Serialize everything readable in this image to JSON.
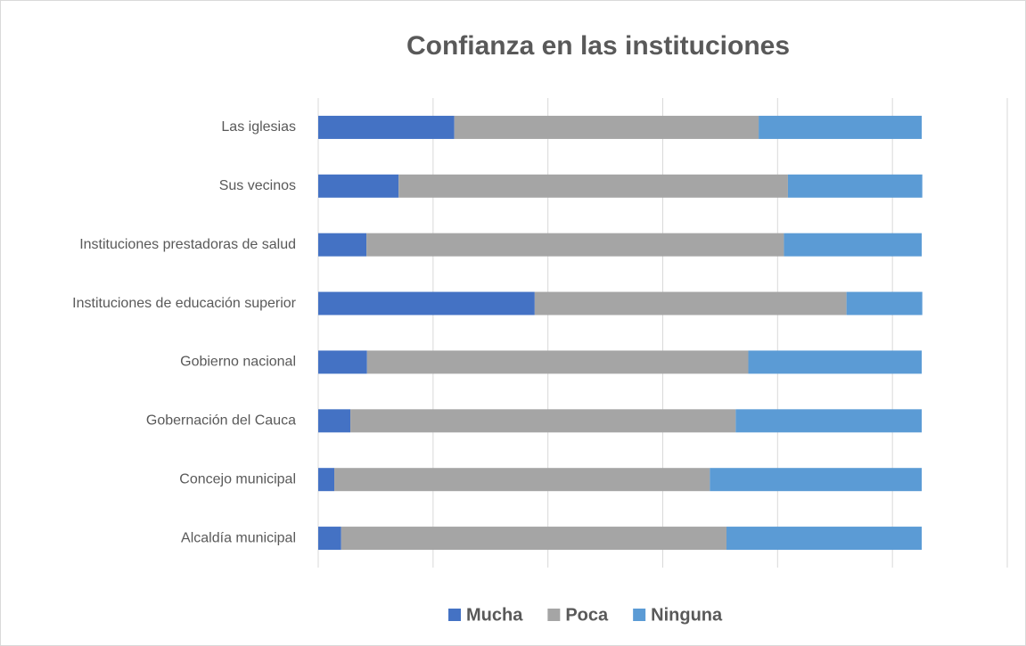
{
  "chart_data": {
    "type": "stacked_barh",
    "title": "Confianza en las instituciones",
    "categories": [
      "Las iglesias",
      "Sus vecinos",
      "Instituciones prestadoras de salud",
      "Instituciones de educación superior",
      "Gobierno nacional",
      "Gobernación del Cauca",
      "Concejo municipal",
      "Alcaldía municipal"
    ],
    "series": [
      {
        "name": "Mucha",
        "color": "#4472c4",
        "values": [
          23.7,
          14.0,
          8.4,
          37.7,
          8.5,
          5.6,
          2.8,
          4.0
        ]
      },
      {
        "name": "Poca",
        "color": "#a5a5a5",
        "values": [
          53.0,
          67.8,
          72.7,
          54.3,
          66.4,
          67.1,
          65.4,
          67.1
        ]
      },
      {
        "name": "Ninguna",
        "color": "#5b9bd5",
        "values": [
          28.4,
          23.4,
          24.0,
          13.2,
          30.2,
          32.4,
          36.9,
          34.0
        ]
      }
    ],
    "xlim": [
      0,
      120
    ],
    "xticks": [
      0,
      20,
      40,
      60,
      80,
      100,
      120
    ],
    "grid": true,
    "legend": "bottom"
  }
}
